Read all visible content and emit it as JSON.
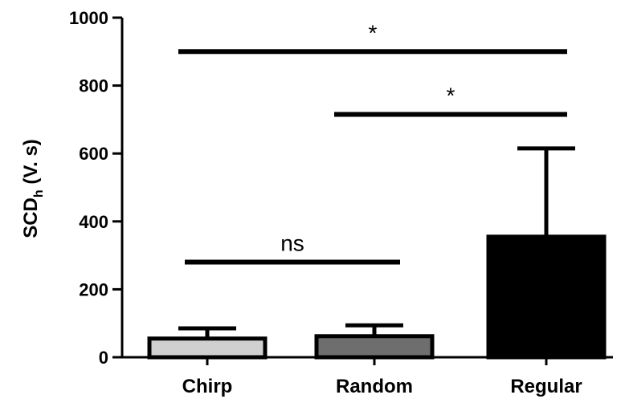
{
  "chart_data": {
    "type": "bar",
    "categories": [
      "Chirp",
      "Random",
      "Regular"
    ],
    "values": [
      55,
      62,
      355
    ],
    "errors": [
      30,
      32,
      260
    ],
    "colors": [
      "#d0d0d0",
      "#6e6e6e",
      "#000000"
    ],
    "ylabel": {
      "main": "SCD",
      "sub": "h",
      "unit": " (V. s)"
    },
    "ylim": [
      0,
      1000
    ],
    "yticks": [
      "0",
      "200",
      "400",
      "600",
      "800",
      "1000"
    ],
    "significance": [
      {
        "from": 0,
        "to": 2,
        "level": 900,
        "label": "*"
      },
      {
        "from": 1,
        "to": 2,
        "level": 715,
        "label": "*"
      },
      {
        "from": 0,
        "to": 1,
        "level": 280,
        "label": "ns"
      }
    ]
  }
}
